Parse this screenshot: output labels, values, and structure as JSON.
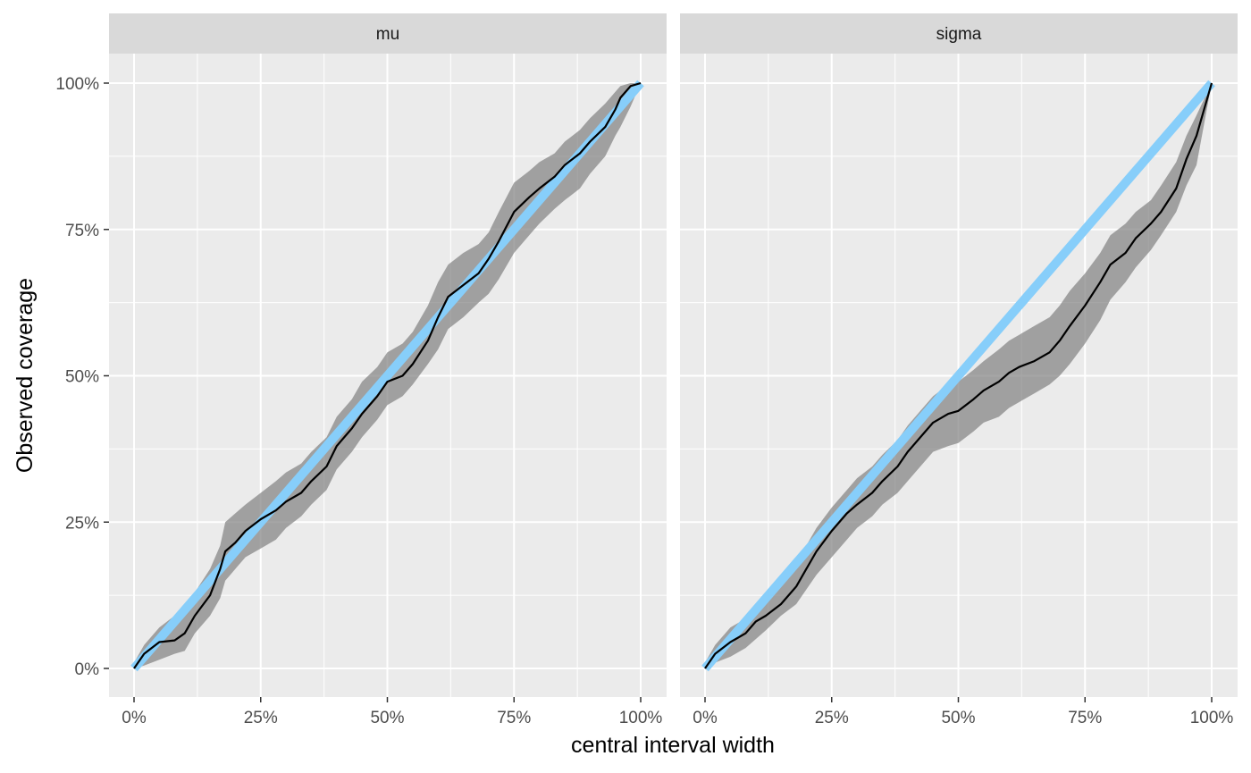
{
  "chart_data": {
    "type": "line",
    "xlabel": "central interval width",
    "ylabel": "Observed coverage",
    "xlim": [
      0,
      1
    ],
    "ylim": [
      0,
      1
    ],
    "x_ticks": [
      0,
      0.25,
      0.5,
      0.75,
      1
    ],
    "x_tick_labels": [
      "0%",
      "25%",
      "50%",
      "75%",
      "100%"
    ],
    "y_ticks": [
      0,
      0.25,
      0.5,
      0.75,
      1
    ],
    "y_tick_labels": [
      "0%",
      "25%",
      "50%",
      "75%",
      "100%"
    ],
    "grid": true,
    "colors": {
      "panel_bg": "#ebebeb",
      "strip_bg": "#d9d9d9",
      "grid": "#ffffff",
      "ribbon": "#808080",
      "reference_line": "#87cefa",
      "observed_line": "#000000"
    },
    "panels": [
      {
        "strip": "mu",
        "x": [
          0,
          0.02,
          0.05,
          0.08,
          0.1,
          0.12,
          0.15,
          0.17,
          0.18,
          0.2,
          0.22,
          0.25,
          0.28,
          0.3,
          0.33,
          0.35,
          0.38,
          0.4,
          0.43,
          0.45,
          0.48,
          0.5,
          0.53,
          0.55,
          0.58,
          0.6,
          0.62,
          0.65,
          0.68,
          0.7,
          0.72,
          0.75,
          0.78,
          0.8,
          0.83,
          0.85,
          0.88,
          0.9,
          0.93,
          0.95,
          0.96,
          0.98,
          1.0
        ],
        "observed": [
          0,
          0.025,
          0.045,
          0.048,
          0.06,
          0.09,
          0.125,
          0.17,
          0.2,
          0.215,
          0.235,
          0.255,
          0.27,
          0.285,
          0.3,
          0.32,
          0.345,
          0.38,
          0.41,
          0.435,
          0.465,
          0.49,
          0.5,
          0.52,
          0.56,
          0.6,
          0.635,
          0.655,
          0.675,
          0.7,
          0.73,
          0.78,
          0.805,
          0.82,
          0.84,
          0.86,
          0.88,
          0.9,
          0.925,
          0.955,
          0.975,
          0.995,
          1.0
        ],
        "lower": [
          0,
          0.005,
          0.015,
          0.025,
          0.03,
          0.06,
          0.09,
          0.12,
          0.15,
          0.17,
          0.19,
          0.205,
          0.22,
          0.24,
          0.26,
          0.28,
          0.305,
          0.34,
          0.37,
          0.395,
          0.425,
          0.45,
          0.465,
          0.485,
          0.52,
          0.545,
          0.58,
          0.6,
          0.625,
          0.64,
          0.665,
          0.71,
          0.74,
          0.76,
          0.785,
          0.8,
          0.82,
          0.845,
          0.875,
          0.91,
          0.925,
          0.96,
          1.0
        ],
        "upper": [
          0.01,
          0.04,
          0.07,
          0.09,
          0.1,
          0.13,
          0.17,
          0.21,
          0.25,
          0.265,
          0.28,
          0.3,
          0.32,
          0.335,
          0.35,
          0.37,
          0.395,
          0.43,
          0.46,
          0.49,
          0.515,
          0.54,
          0.555,
          0.575,
          0.62,
          0.66,
          0.69,
          0.71,
          0.725,
          0.745,
          0.78,
          0.83,
          0.85,
          0.865,
          0.88,
          0.9,
          0.92,
          0.94,
          0.965,
          0.985,
          0.995,
          1.0,
          1.0
        ]
      },
      {
        "strip": "sigma",
        "x": [
          0,
          0.02,
          0.05,
          0.08,
          0.1,
          0.12,
          0.15,
          0.18,
          0.2,
          0.22,
          0.25,
          0.28,
          0.3,
          0.33,
          0.35,
          0.38,
          0.4,
          0.43,
          0.45,
          0.48,
          0.5,
          0.53,
          0.55,
          0.58,
          0.6,
          0.62,
          0.65,
          0.68,
          0.7,
          0.72,
          0.75,
          0.78,
          0.8,
          0.83,
          0.85,
          0.88,
          0.9,
          0.93,
          0.95,
          0.97,
          1.0
        ],
        "observed": [
          0,
          0.025,
          0.045,
          0.06,
          0.08,
          0.09,
          0.11,
          0.14,
          0.17,
          0.2,
          0.235,
          0.265,
          0.28,
          0.3,
          0.32,
          0.345,
          0.37,
          0.4,
          0.42,
          0.435,
          0.44,
          0.46,
          0.475,
          0.49,
          0.505,
          0.515,
          0.525,
          0.54,
          0.56,
          0.585,
          0.62,
          0.66,
          0.69,
          0.71,
          0.735,
          0.76,
          0.78,
          0.82,
          0.87,
          0.91,
          1.0
        ],
        "lower": [
          0,
          0.01,
          0.02,
          0.035,
          0.05,
          0.065,
          0.09,
          0.11,
          0.135,
          0.16,
          0.19,
          0.22,
          0.24,
          0.26,
          0.28,
          0.3,
          0.32,
          0.35,
          0.37,
          0.38,
          0.385,
          0.405,
          0.42,
          0.43,
          0.445,
          0.455,
          0.47,
          0.485,
          0.5,
          0.52,
          0.555,
          0.595,
          0.63,
          0.66,
          0.685,
          0.715,
          0.74,
          0.78,
          0.825,
          0.86,
          1.0
        ],
        "upper": [
          0.01,
          0.04,
          0.07,
          0.085,
          0.105,
          0.125,
          0.15,
          0.18,
          0.21,
          0.24,
          0.275,
          0.305,
          0.325,
          0.345,
          0.365,
          0.39,
          0.415,
          0.445,
          0.465,
          0.485,
          0.49,
          0.51,
          0.525,
          0.545,
          0.56,
          0.57,
          0.585,
          0.6,
          0.62,
          0.645,
          0.675,
          0.71,
          0.74,
          0.76,
          0.78,
          0.8,
          0.825,
          0.865,
          0.91,
          0.945,
          1.0
        ]
      }
    ]
  }
}
